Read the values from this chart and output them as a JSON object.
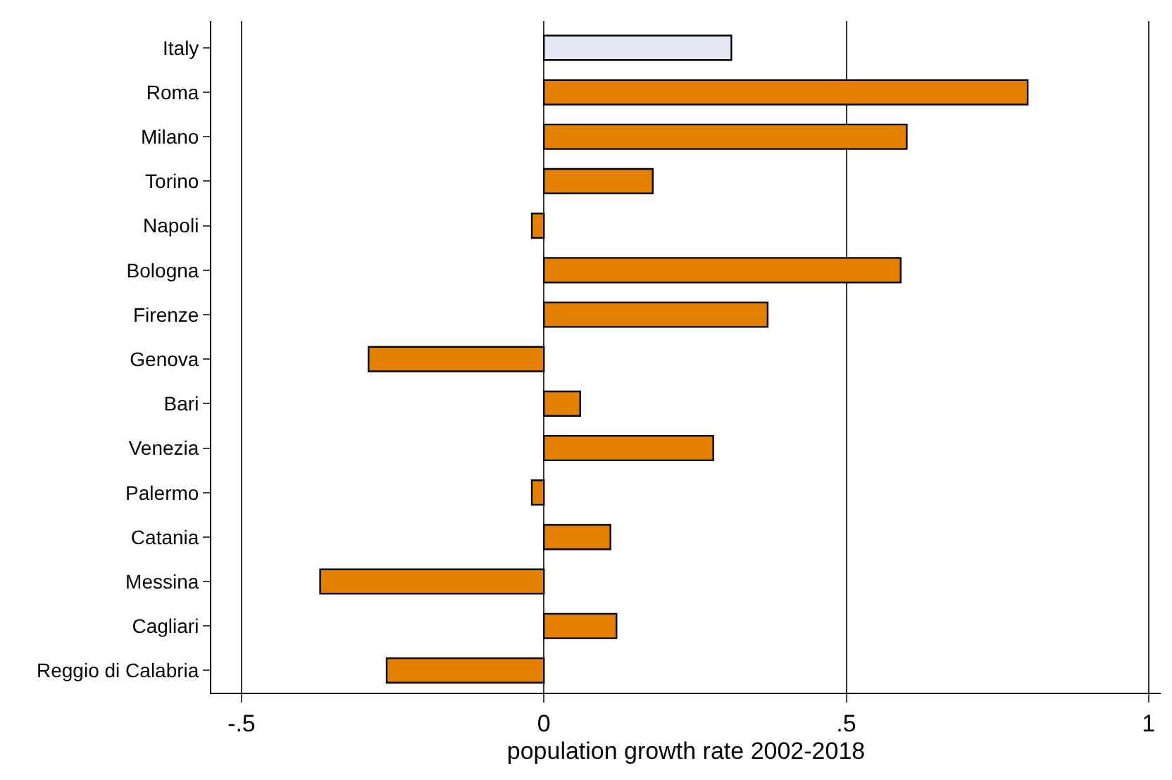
{
  "chart_data": {
    "type": "bar",
    "orientation": "horizontal",
    "xlabel": "population growth rate 2002-2018",
    "categories": [
      "Italy",
      "Roma",
      "Milano",
      "Torino",
      "Napoli",
      "Bologna",
      "Firenze",
      "Genova",
      "Bari",
      "Venezia",
      "Palermo",
      "Catania",
      "Messina",
      "Cagliari",
      "Reggio di Calabria"
    ],
    "values": [
      0.31,
      0.8,
      0.6,
      0.18,
      -0.02,
      0.59,
      0.37,
      -0.29,
      0.06,
      0.28,
      -0.02,
      0.11,
      -0.37,
      0.12,
      -0.26
    ],
    "colors": [
      "#e4e8f3",
      "#e38000",
      "#e38000",
      "#e38000",
      "#e38000",
      "#e38000",
      "#e38000",
      "#e38000",
      "#e38000",
      "#e38000",
      "#e38000",
      "#e38000",
      "#e38000",
      "#e38000",
      "#e38000"
    ],
    "xlim": [
      -0.55,
      1.02
    ],
    "xticks": [
      {
        "value": -0.5,
        "label": "-.5"
      },
      0,
      {
        "value": 0.5,
        "label": ".5"
      },
      1
    ],
    "grid": "x",
    "legend": false
  }
}
